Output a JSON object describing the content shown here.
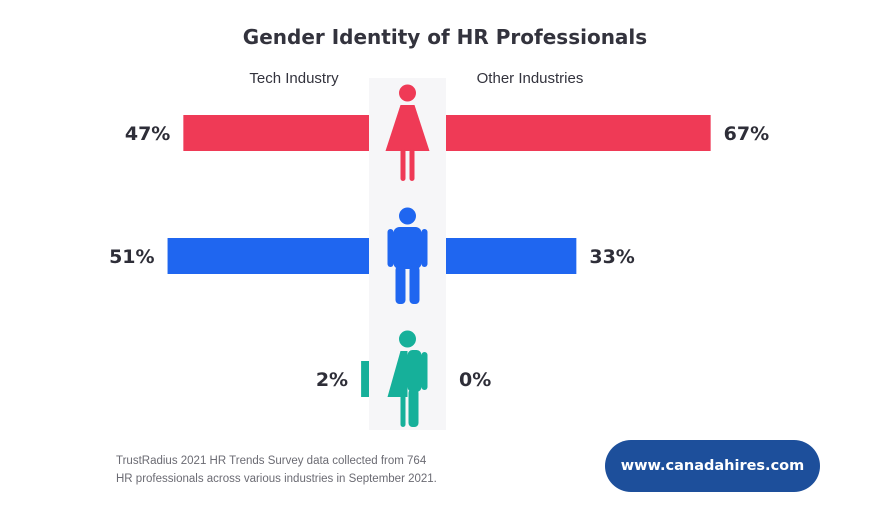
{
  "chart_data": {
    "type": "bar",
    "title": "Gender Identity of HR Professionals",
    "groups": [
      "Tech Industry",
      "Other Industries"
    ],
    "rows": [
      {
        "icon": "female-icon",
        "color": "#ef3a56",
        "tech": 47,
        "other": 67,
        "tech_label": "47%",
        "other_label": "67%"
      },
      {
        "icon": "male-icon",
        "color": "#1f66f0",
        "tech": 51,
        "other": 33,
        "tech_label": "51%",
        "other_label": "33%"
      },
      {
        "icon": "nonbinary-icon",
        "color": "#16b09a",
        "tech": 2,
        "other": 0,
        "tech_label": "2%",
        "other_label": "0%"
      }
    ]
  },
  "footnote": {
    "line1": "TrustRadius 2021 HR Trends Survey data collected from 764",
    "line2": "HR professionals across various industries in September 2021."
  },
  "badge": {
    "label": "www.canadahires.com"
  }
}
